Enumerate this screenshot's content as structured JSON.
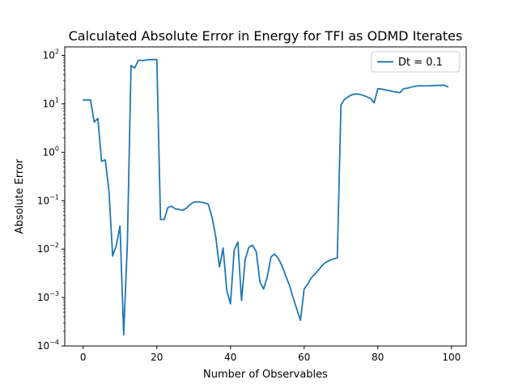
{
  "chart_data": {
    "type": "line",
    "title": "Calculated Absolute Error in Energy for TFI as ODMD Iterates",
    "xlabel": "Number of Observables",
    "ylabel": "Absolute Error",
    "xlim": [
      -5,
      104
    ],
    "ylim": [
      0.0001,
      150
    ],
    "yscale": "log",
    "grid": false,
    "legend_position": "top-right",
    "x_ticks": [
      0,
      20,
      40,
      60,
      80,
      100
    ],
    "y_ticks": [
      {
        "value": 0.0001,
        "base": "10",
        "exp": "−4"
      },
      {
        "value": 0.001,
        "base": "10",
        "exp": "−3"
      },
      {
        "value": 0.01,
        "base": "10",
        "exp": "−2"
      },
      {
        "value": 0.1,
        "base": "10",
        "exp": "−1"
      },
      {
        "value": 1,
        "base": "10",
        "exp": "0"
      },
      {
        "value": 10,
        "base": "10",
        "exp": "1"
      },
      {
        "value": 100,
        "base": "10",
        "exp": "2"
      }
    ],
    "series": [
      {
        "name": "Dt = 0.1",
        "color": "#1f77b4",
        "x": [
          0,
          1,
          2,
          3,
          4,
          5,
          6,
          7,
          8,
          9,
          10,
          11,
          12,
          13,
          14,
          15,
          16,
          17,
          18,
          19,
          20,
          21,
          22,
          23,
          24,
          25,
          26,
          27,
          28,
          29,
          30,
          31,
          32,
          33,
          34,
          35,
          36,
          37,
          38,
          39,
          40,
          41,
          42,
          43,
          44,
          45,
          46,
          47,
          48,
          49,
          50,
          51,
          52,
          53,
          54,
          55,
          56,
          57,
          58,
          59,
          60,
          61,
          62,
          63,
          64,
          65,
          66,
          67,
          68,
          69,
          70,
          71,
          72,
          73,
          74,
          75,
          76,
          77,
          78,
          79,
          80,
          81,
          82,
          83,
          84,
          85,
          86,
          87,
          88,
          89,
          90,
          91,
          92,
          93,
          94,
          95,
          96,
          97,
          98,
          99
        ],
        "y": [
          12,
          12,
          12,
          4.2,
          5,
          0.65,
          0.7,
          0.16,
          0.0072,
          0.012,
          0.03,
          0.00017,
          0.013,
          62,
          55,
          80,
          78,
          80,
          82,
          82,
          82,
          0.041,
          0.041,
          0.072,
          0.077,
          0.068,
          0.066,
          0.063,
          0.07,
          0.083,
          0.093,
          0.095,
          0.093,
          0.09,
          0.084,
          0.045,
          0.018,
          0.0043,
          0.0105,
          0.0014,
          0.00074,
          0.0095,
          0.014,
          0.00087,
          0.0062,
          0.011,
          0.012,
          0.0088,
          0.0021,
          0.0015,
          0.0027,
          0.0069,
          0.0079,
          0.0064,
          0.0045,
          0.0028,
          0.0018,
          0.001,
          0.00058,
          0.00034,
          0.0015,
          0.0019,
          0.0026,
          0.0031,
          0.0038,
          0.0047,
          0.0054,
          0.0059,
          0.0063,
          0.0066,
          9.5,
          12.5,
          14,
          15.5,
          16,
          15.8,
          15,
          14,
          13,
          10.5,
          20.5,
          20.2,
          19.5,
          18.8,
          18,
          17.5,
          17,
          20.5,
          21,
          22,
          23,
          23.5,
          23.5,
          23.5,
          23.6,
          23.8,
          24,
          24.1,
          24.2,
          22.5
        ]
      }
    ]
  }
}
